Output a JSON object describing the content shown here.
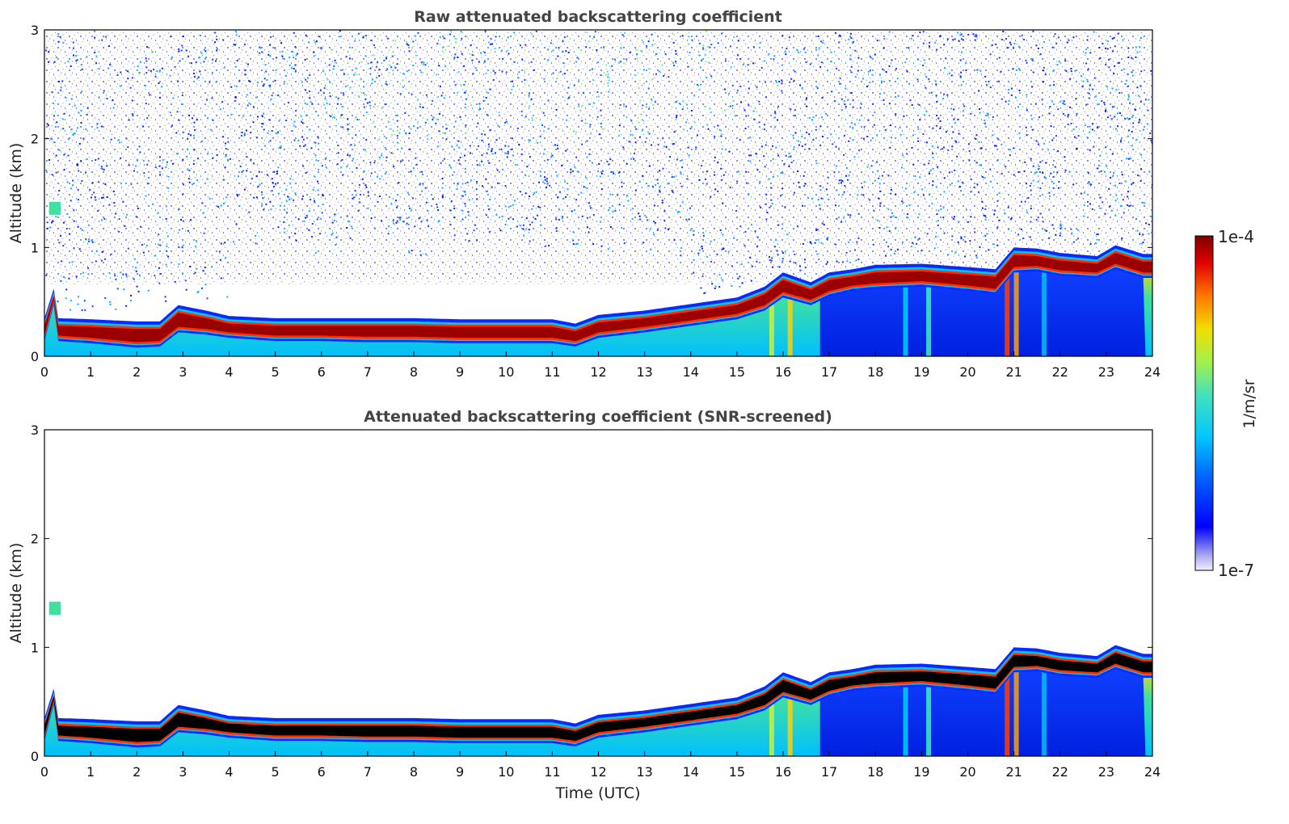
{
  "colorbar": {
    "label": "1/m/sr",
    "max_label": "1e-4",
    "min_label": "1e-7",
    "scale": "log",
    "range": [
      1e-07,
      0.0001
    ],
    "colormap": "jet-like (white/lavender to blue, cyan, green, yellow, orange, red, dark red)"
  },
  "shared_xlabel": "Time (UTC)",
  "chart_data": [
    {
      "type": "heatmap",
      "title": "Raw attenuated backscattering coefficient",
      "xlabel": "",
      "ylabel": "Altitude (km)",
      "xlim": [
        0,
        24
      ],
      "ylim": [
        0,
        3
      ],
      "xticks": [
        "0",
        "1",
        "2",
        "3",
        "4",
        "5",
        "6",
        "7",
        "8",
        "9",
        "10",
        "11",
        "12",
        "13",
        "14",
        "15",
        "16",
        "17",
        "18",
        "19",
        "20",
        "21",
        "22",
        "23",
        "24"
      ],
      "yticks": [
        "0",
        "1",
        "2",
        "3"
      ],
      "noise_present": true,
      "layer_top_km": {
        "t": [
          0,
          0.2,
          0.3,
          1,
          2,
          2.5,
          2.9,
          3.5,
          4,
          5,
          6,
          7,
          8,
          9,
          10,
          11,
          11.5,
          12,
          13,
          14,
          15,
          15.6,
          16,
          16.6,
          17,
          17.5,
          18,
          19,
          20,
          20.6,
          21,
          21.5,
          22,
          22.8,
          23.2,
          23.8
        ],
        "z": [
          0.33,
          0.6,
          0.33,
          0.32,
          0.3,
          0.3,
          0.45,
          0.4,
          0.35,
          0.33,
          0.33,
          0.33,
          0.33,
          0.32,
          0.32,
          0.32,
          0.28,
          0.36,
          0.4,
          0.46,
          0.52,
          0.62,
          0.75,
          0.66,
          0.75,
          0.78,
          0.82,
          0.83,
          0.8,
          0.78,
          0.98,
          0.97,
          0.93,
          0.9,
          1.0,
          0.92
        ]
      },
      "layer_core_km": {
        "t": [
          0,
          0.2,
          0.3,
          1,
          2,
          2.5,
          2.9,
          3.5,
          4,
          5,
          6,
          7,
          8,
          9,
          10,
          11,
          11.5,
          12,
          13,
          14,
          15,
          15.6,
          16,
          16.6,
          17,
          17.5,
          18,
          19,
          20,
          20.6,
          21,
          21.5,
          22,
          22.8,
          23.2,
          23.8
        ],
        "z": [
          0.22,
          0.55,
          0.22,
          0.2,
          0.16,
          0.17,
          0.3,
          0.28,
          0.25,
          0.22,
          0.22,
          0.21,
          0.21,
          0.2,
          0.2,
          0.2,
          0.17,
          0.25,
          0.3,
          0.36,
          0.42,
          0.5,
          0.62,
          0.55,
          0.63,
          0.68,
          0.7,
          0.72,
          0.68,
          0.65,
          0.85,
          0.86,
          0.82,
          0.8,
          0.88,
          0.8
        ]
      },
      "aerosol_patch": {
        "t": [
          0.1,
          0.35
        ],
        "z": [
          1.3,
          1.42
        ]
      }
    },
    {
      "type": "heatmap",
      "title": "Attenuated backscattering coefficient (SNR-screened)",
      "xlabel": "Time (UTC)",
      "ylabel": "Altitude (km)",
      "xlim": [
        0,
        24
      ],
      "ylim": [
        0,
        3
      ],
      "xticks": [
        "0",
        "1",
        "2",
        "3",
        "4",
        "5",
        "6",
        "7",
        "8",
        "9",
        "10",
        "11",
        "12",
        "13",
        "14",
        "15",
        "16",
        "17",
        "18",
        "19",
        "20",
        "21",
        "22",
        "23",
        "24"
      ],
      "yticks": [
        "0",
        "1",
        "2",
        "3"
      ],
      "noise_present": false,
      "saturated_color": "#000000"
    }
  ]
}
